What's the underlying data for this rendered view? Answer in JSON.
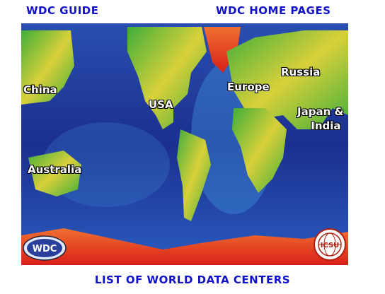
{
  "links": {
    "wdc_guide": "WDC GUIDE",
    "home_pages": "WDC HOME PAGES",
    "list": "LIST OF WORLD DATA CENTERS"
  },
  "regions": {
    "china": "China",
    "usa": "USA",
    "europe": "Europe",
    "russia": "Russia",
    "japan_line1": "Japan &",
    "japan_line2": "India",
    "australia": "Australia"
  },
  "badges": {
    "wdc": "WDC",
    "icsu": "ICSU"
  },
  "colors": {
    "link": "#1010c8",
    "ocean_deep": "#1b2f8f",
    "ocean_shelf": "#3f8fd8",
    "land_green": "#3fae3a",
    "land_yellow": "#e0d23a",
    "land_red": "#e23a1e"
  }
}
